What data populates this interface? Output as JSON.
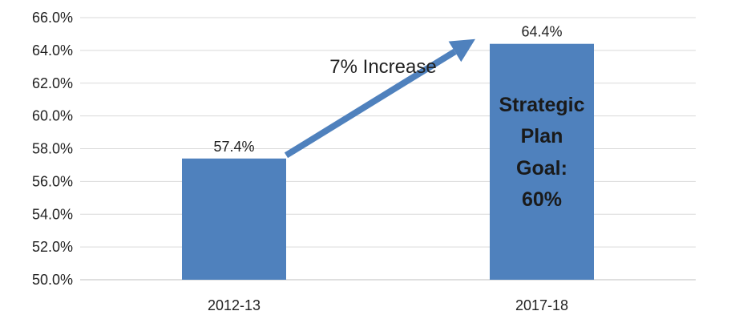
{
  "chart_data": {
    "type": "bar",
    "categories": [
      "2012-13",
      "2017-18"
    ],
    "values": [
      57.4,
      64.4
    ],
    "value_labels": [
      "57.4%",
      "64.4%"
    ],
    "ylim": [
      50,
      66
    ],
    "yticks": [
      50,
      52,
      54,
      56,
      58,
      60,
      62,
      64,
      66
    ],
    "ytick_labels": [
      "50.0%",
      "52.0%",
      "54.0%",
      "56.0%",
      "58.0%",
      "60.0%",
      "62.0%",
      "64.0%",
      "66.0%"
    ],
    "grid": true,
    "legend": "none",
    "title": "",
    "xlabel": "",
    "ylabel": "",
    "bar_color": "#4f81bd",
    "annotations": {
      "arrow_label": "7% Increase",
      "goal_lines": [
        "Strategic",
        "Plan",
        "Goal:",
        "60%"
      ]
    }
  }
}
